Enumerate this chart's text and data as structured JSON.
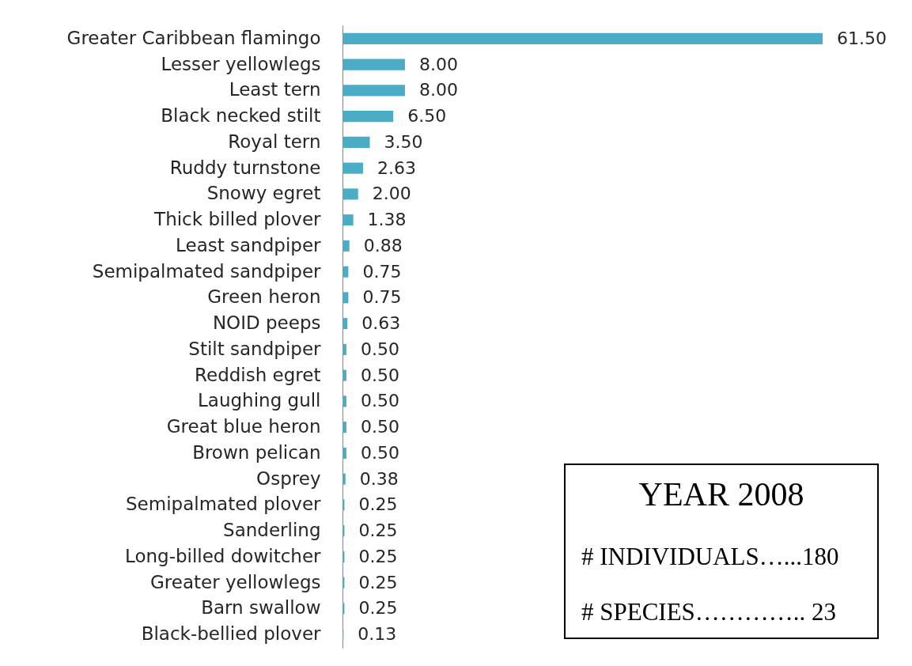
{
  "chart_data": {
    "type": "bar",
    "orientation": "horizontal",
    "categories": [
      "Greater Caribbean flamingo",
      "Lesser yellowlegs",
      "Least tern",
      "Black necked stilt",
      "Royal tern",
      "Ruddy turnstone",
      "Snowy egret",
      "Thick billed plover",
      "Least sandpiper",
      "Semipalmated sandpiper",
      "Green heron",
      "NOID peeps",
      "Stilt sandpiper",
      "Reddish egret",
      "Laughing gull",
      "Great blue heron",
      "Brown pelican",
      "Osprey",
      "Semipalmated plover",
      "Sanderling",
      "Long-billed dowitcher",
      "Greater yellowlegs",
      "Barn swallow",
      "Black-bellied plover"
    ],
    "values": [
      61.5,
      8,
      8,
      6.5,
      3.5,
      2.63,
      2,
      1.38,
      0.88,
      0.75,
      0.75,
      0.63,
      0.5,
      0.5,
      0.5,
      0.5,
      0.5,
      0.38,
      0.25,
      0.25,
      0.25,
      0.25,
      0.25,
      0.13
    ],
    "value_labels": [
      "61.50",
      "8.00",
      "8.00",
      "6.50",
      "3.50",
      "2.63",
      "2.00",
      "1.38",
      "0.88",
      "0.75",
      "0.75",
      "0.63",
      "0.50",
      "0.50",
      "0.50",
      "0.50",
      "0.50",
      "0.38",
      "0.25",
      "0.25",
      "0.25",
      "0.25",
      "0.25",
      "0.13"
    ],
    "color": "#4bacc6",
    "annotations": [
      "YEAR 2008",
      "# INDIVIDUALS…...180",
      "# SPECIES………….. 23"
    ]
  }
}
